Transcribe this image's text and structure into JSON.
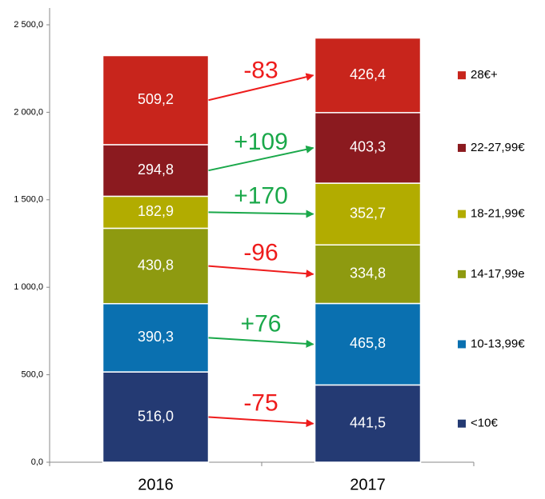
{
  "chart_data": {
    "type": "bar",
    "stacked": true,
    "categories": [
      "2016",
      "2017"
    ],
    "series": [
      {
        "name": "<10€",
        "color": "#243a73",
        "values": [
          516.0,
          441.5
        ],
        "value_labels": [
          "516,0",
          "441,5"
        ]
      },
      {
        "name": "10-13,99€",
        "color": "#0a70b0",
        "values": [
          390.3,
          465.8
        ],
        "value_labels": [
          "390,3",
          "465,8"
        ]
      },
      {
        "name": "14-17,99e",
        "color": "#8e9a10",
        "values": [
          430.8,
          334.8
        ],
        "value_labels": [
          "430,8",
          "334,8"
        ]
      },
      {
        "name": "18-21,99€",
        "color": "#b2ac00",
        "values": [
          182.9,
          352.7
        ],
        "value_labels": [
          "182,9",
          "352,7"
        ]
      },
      {
        "name": "22-27,99€",
        "color": "#8b1a1f",
        "values": [
          294.8,
          403.3
        ],
        "value_labels": [
          "294,8",
          "403,3"
        ]
      },
      {
        "name": "28€+",
        "color": "#c8251c",
        "values": [
          509.2,
          426.4
        ],
        "value_labels": [
          "509,2",
          "426,4"
        ]
      }
    ],
    "annotations": [
      {
        "text": "-75",
        "color": "#ee1c1c"
      },
      {
        "text": "+76",
        "color": "#1aa84a"
      },
      {
        "text": "-96",
        "color": "#ee1c1c"
      },
      {
        "text": "+170",
        "color": "#1aa84a"
      },
      {
        "text": "+109",
        "color": "#1aa84a"
      },
      {
        "text": "-83",
        "color": "#ee1c1c"
      }
    ],
    "ylim": [
      0,
      2500
    ],
    "yticks": [
      {
        "value": 0,
        "label": "0,0"
      },
      {
        "value": 500,
        "label": "500,0"
      },
      {
        "value": 1000,
        "label": "1 000,0"
      },
      {
        "value": 1500,
        "label": "1 500,0"
      },
      {
        "value": 2000,
        "label": "2 000,0"
      },
      {
        "value": 2500,
        "label": "2 500,0"
      }
    ],
    "legend": "right"
  }
}
